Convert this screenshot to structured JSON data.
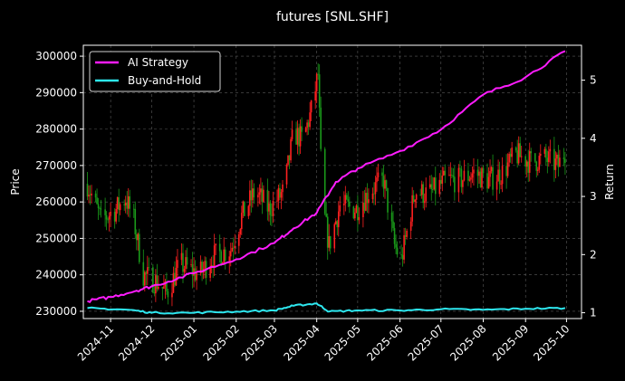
{
  "chart_data": {
    "type": "line",
    "title": "futures [SNL.SHF]",
    "ylabel": "Price",
    "y2label": "Return",
    "x_ticks": [
      "2024-11",
      "2024-12",
      "2025-01",
      "2025-02",
      "2025-03",
      "2025-04",
      "2025-05",
      "2025-06",
      "2025-07",
      "2025-08",
      "2025-09",
      "2025-10"
    ],
    "ylim": [
      228000,
      303000
    ],
    "y_ticks": [
      230000,
      240000,
      250000,
      260000,
      270000,
      280000,
      290000,
      300000
    ],
    "y_tick_labels": [
      "230000",
      "240000",
      "250000",
      "260000",
      "270000",
      "280000",
      "290000",
      "300000"
    ],
    "y2lim": [
      0.9,
      5.6
    ],
    "y2_ticks": [
      1,
      2,
      3,
      4,
      5
    ],
    "y2_tick_labels": [
      "1",
      "2",
      "3",
      "4",
      "5"
    ],
    "grid": true,
    "legend_position": "top-left",
    "colors": {
      "up": "#ff2020",
      "down": "#1a9a1a",
      "ai": "#ff1cff",
      "bh": "#2ee8f0",
      "background": "#000000"
    },
    "price_anchors": [
      [
        "2024-10-15",
        265000
      ],
      [
        "2024-10-25",
        255000
      ],
      [
        "2024-11-05",
        258000
      ],
      [
        "2024-11-12",
        261000
      ],
      [
        "2024-11-18",
        255000
      ],
      [
        "2024-11-25",
        240000
      ],
      [
        "2024-12-05",
        238000
      ],
      [
        "2024-12-12",
        235000
      ],
      [
        "2024-12-22",
        243000
      ],
      [
        "2025-01-05",
        240000
      ],
      [
        "2025-01-15",
        245000
      ],
      [
        "2025-01-28",
        247000
      ],
      [
        "2025-02-05",
        256000
      ],
      [
        "2025-02-15",
        263000
      ],
      [
        "2025-02-25",
        258000
      ],
      [
        "2025-03-08",
        263000
      ],
      [
        "2025-03-15",
        279000
      ],
      [
        "2025-03-22",
        277000
      ],
      [
        "2025-03-28",
        285000
      ],
      [
        "2025-04-02",
        295000
      ],
      [
        "2025-04-05",
        260000
      ],
      [
        "2025-04-10",
        248000
      ],
      [
        "2025-04-18",
        259000
      ],
      [
        "2025-04-30",
        258000
      ],
      [
        "2025-05-10",
        263000
      ],
      [
        "2025-05-20",
        266000
      ],
      [
        "2025-05-28",
        248000
      ],
      [
        "2025-06-02",
        244000
      ],
      [
        "2025-06-12",
        263000
      ],
      [
        "2025-06-22",
        262000
      ],
      [
        "2025-07-05",
        266000
      ],
      [
        "2025-07-15",
        266000
      ],
      [
        "2025-07-25",
        268000
      ],
      [
        "2025-08-05",
        266000
      ],
      [
        "2025-08-15",
        268000
      ],
      [
        "2025-08-25",
        273000
      ],
      [
        "2025-09-05",
        271000
      ],
      [
        "2025-09-15",
        272000
      ],
      [
        "2025-09-25",
        270000
      ],
      [
        "2025-09-30",
        274000
      ]
    ],
    "series": [
      {
        "name": "AI Strategy",
        "points": [
          [
            "2024-10-15",
            1.2
          ],
          [
            "2024-11-01",
            1.27
          ],
          [
            "2024-11-20",
            1.38
          ],
          [
            "2024-12-05",
            1.48
          ],
          [
            "2025-01-01",
            1.68
          ],
          [
            "2025-02-01",
            1.92
          ],
          [
            "2025-03-01",
            2.2
          ],
          [
            "2025-03-15",
            2.45
          ],
          [
            "2025-04-01",
            2.72
          ],
          [
            "2025-04-15",
            3.25
          ],
          [
            "2025-05-01",
            3.48
          ],
          [
            "2025-06-01",
            3.78
          ],
          [
            "2025-07-01",
            4.15
          ],
          [
            "2025-08-01",
            4.75
          ],
          [
            "2025-09-01",
            5.05
          ],
          [
            "2025-09-30",
            5.5
          ]
        ]
      },
      {
        "name": "Buy-and-Hold",
        "points": [
          [
            "2024-10-15",
            1.08
          ],
          [
            "2024-11-15",
            1.05
          ],
          [
            "2024-12-01",
            1.0
          ],
          [
            "2025-01-01",
            1.0
          ],
          [
            "2025-02-01",
            1.02
          ],
          [
            "2025-03-01",
            1.04
          ],
          [
            "2025-03-15",
            1.12
          ],
          [
            "2025-04-01",
            1.16
          ],
          [
            "2025-04-10",
            1.02
          ],
          [
            "2025-05-01",
            1.04
          ],
          [
            "2025-06-01",
            1.04
          ],
          [
            "2025-07-01",
            1.06
          ],
          [
            "2025-08-01",
            1.05
          ],
          [
            "2025-09-01",
            1.07
          ],
          [
            "2025-09-30",
            1.08
          ]
        ]
      }
    ]
  }
}
